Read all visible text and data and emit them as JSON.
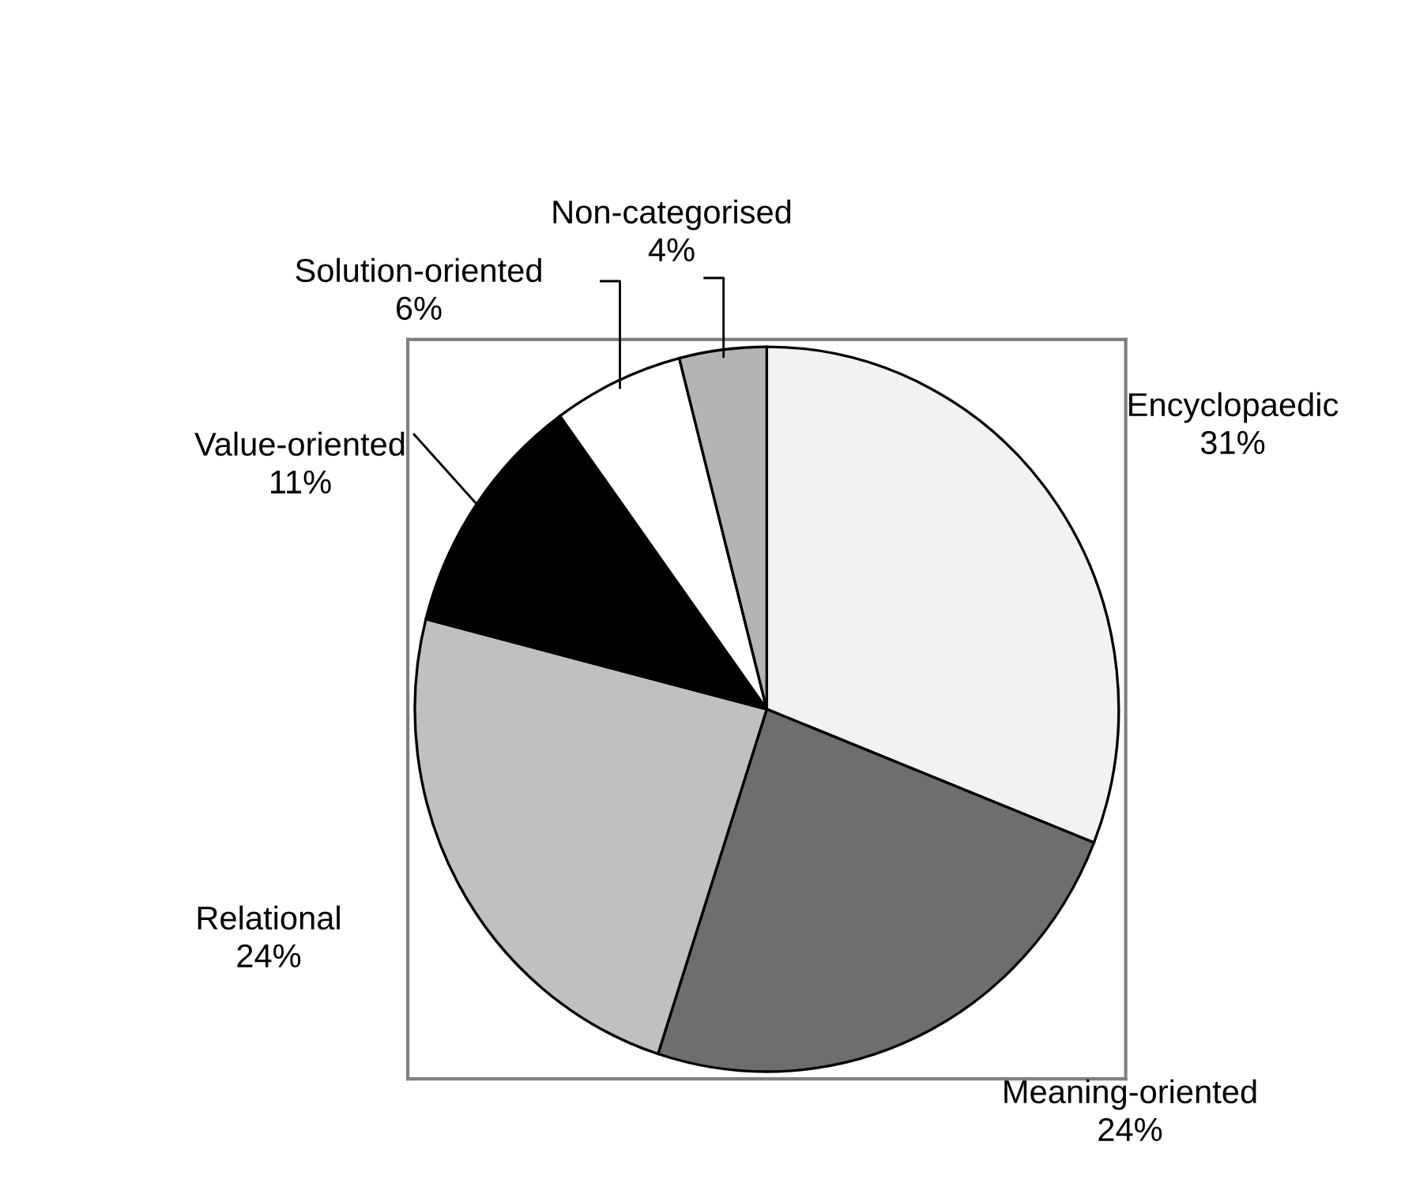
{
  "chart_data": {
    "type": "pie",
    "categories": [
      "Encyclopaedic",
      "Meaning-oriented",
      "Relational",
      "Value-oriented",
      "Solution-oriented",
      "Non-categorised"
    ],
    "values": [
      31,
      24,
      24,
      11,
      6,
      4
    ],
    "value_labels": [
      "31%",
      "24%",
      "24%",
      "11%",
      "6%",
      "4%"
    ],
    "colors": [
      "#f2f2f2",
      "#6e6e6e",
      "#c0c0c0",
      "#000000",
      "#ffffff",
      "#b4b4b4"
    ]
  }
}
